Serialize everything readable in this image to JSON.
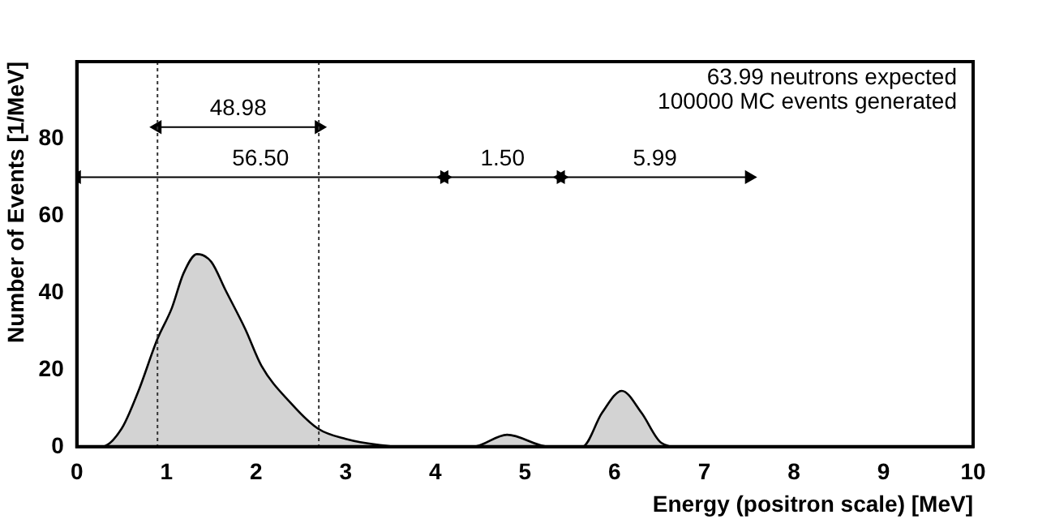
{
  "chart_data": {
    "type": "area",
    "xlabel": "Energy (positron scale) [MeV]",
    "ylabel": "Number of Events [1/MeV]",
    "x": [
      0,
      0.28,
      0.5,
      0.68,
      0.9,
      1.06,
      1.19,
      1.34,
      1.5,
      1.66,
      1.88,
      2.06,
      2.38,
      2.69,
      3.0,
      3.38,
      3.6,
      4.3,
      4.42,
      4.8,
      5.27,
      5.64,
      5.86,
      6.08,
      6.3,
      6.52,
      6.7,
      10
    ],
    "series": [
      {
        "color": "#d3d3d3",
        "values": [
          0,
          0,
          4.7,
          14,
          28,
          36,
          45,
          50,
          48,
          40.6,
          30.5,
          21,
          11.5,
          4.7,
          2.0,
          0.4,
          0,
          0,
          0,
          3.1,
          0,
          0,
          8.8,
          14.5,
          8.8,
          1.0,
          0,
          0
        ]
      },
      {
        "type": "line",
        "color": "#000000",
        "marker": "triangle",
        "x": [
          0.9,
          2.7
        ],
        "values": [
          83,
          83
        ]
      },
      {
        "type": "line",
        "color": "#000000",
        "marker": "triangle",
        "x": [
          0,
          4.1
        ],
        "values": [
          70,
          70
        ]
      },
      {
        "type": "line",
        "color": "#000000",
        "marker": "triangle",
        "x": [
          4.1,
          5.4
        ],
        "values": [
          70,
          70
        ]
      },
      {
        "type": "line",
        "color": "#000000",
        "marker": "triangle",
        "x": [
          5.4,
          7.5
        ],
        "values": [
          70,
          70
        ]
      }
    ],
    "xlim": [
      0,
      10
    ],
    "ylim": [
      0,
      100
    ],
    "xticks": [
      0,
      1,
      2,
      3,
      4,
      5,
      6,
      7,
      8,
      9,
      10
    ],
    "yticks": [
      0,
      20,
      40,
      60,
      80
    ],
    "grid": false,
    "legend": false,
    "ref_lines": [
      {
        "axis": "x",
        "value": 0.9,
        "line_style": "dotted"
      },
      {
        "axis": "x",
        "value": 2.7,
        "line_style": "dotted"
      }
    ],
    "annotations": [
      "63.99 neutrons expected",
      "100000 MC events generated",
      {
        "text": "48.98",
        "x": 1.8,
        "y": 83
      },
      {
        "text": "56.50",
        "x": 2.05,
        "y": 70
      },
      {
        "text": "1.50",
        "x": 4.75,
        "y": 70
      },
      {
        "text": "5.99",
        "x": 6.45,
        "y": 70
      }
    ]
  }
}
